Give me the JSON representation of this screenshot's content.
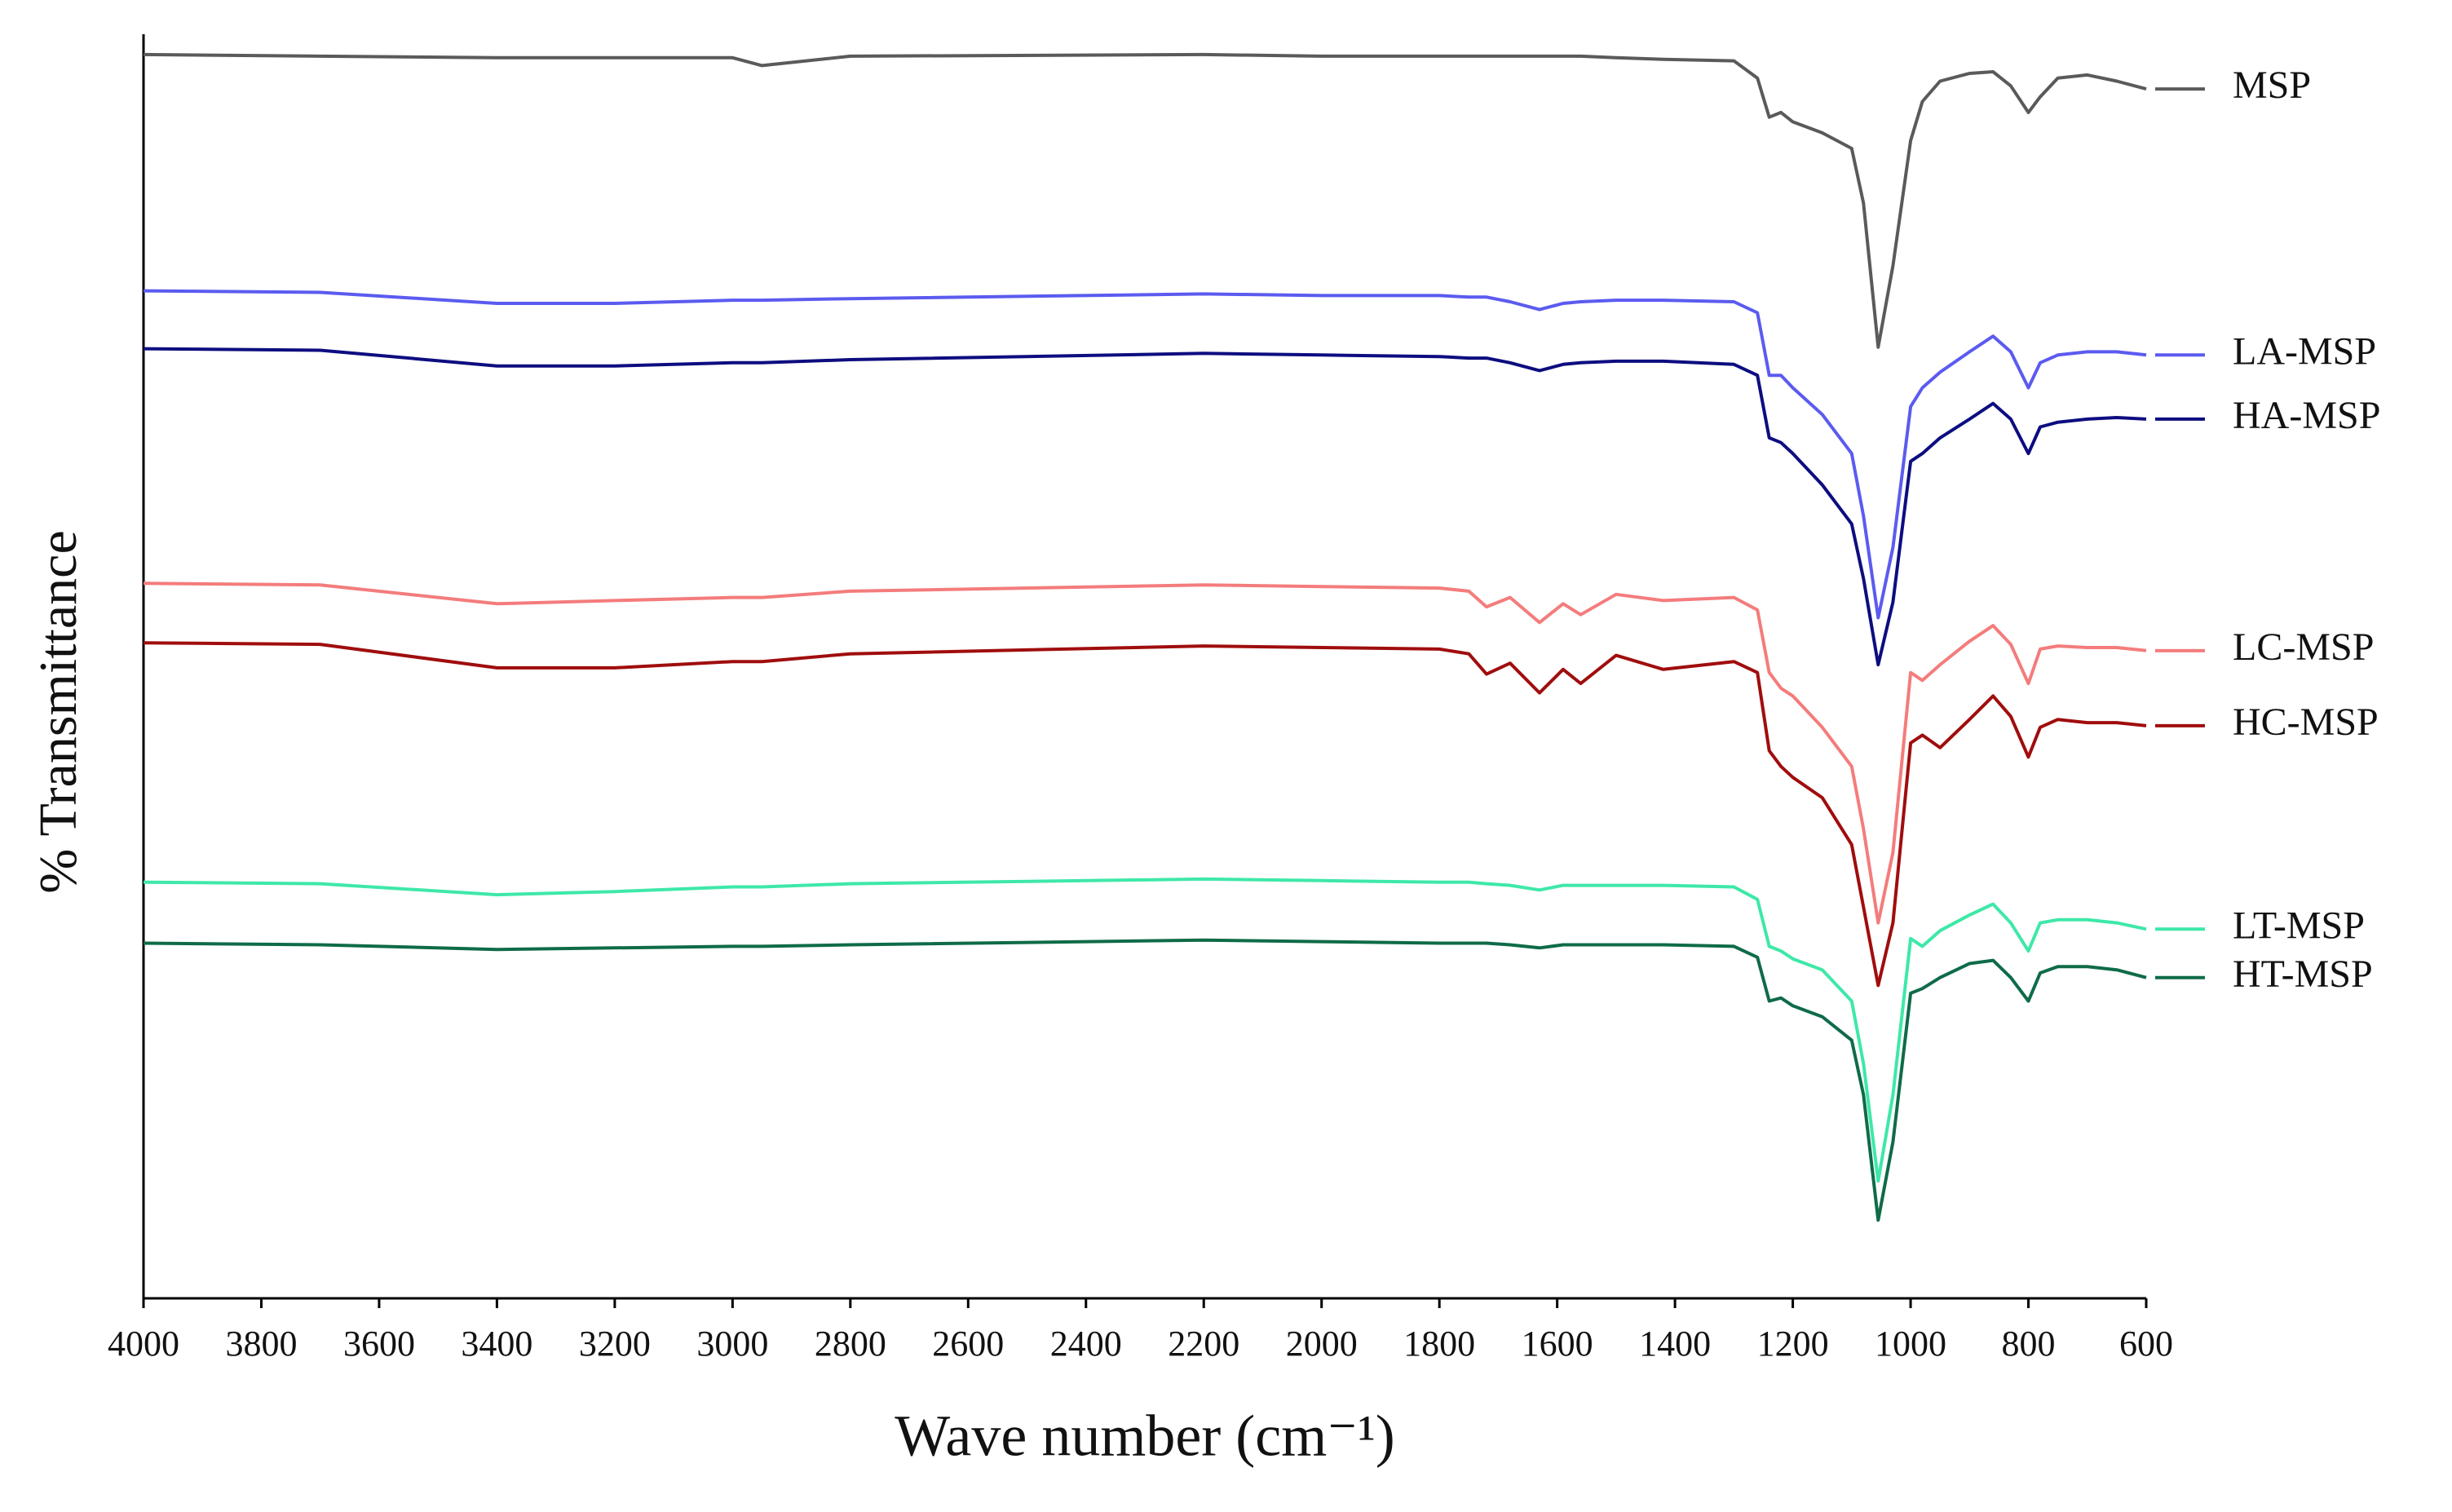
{
  "chart_data": {
    "type": "line",
    "xlabel": "Wave number (cm⁻¹)",
    "ylabel": "% Transmittance",
    "xlim": [
      4000,
      600
    ],
    "xticks": [
      4000,
      3800,
      3600,
      3400,
      3200,
      3000,
      2800,
      2600,
      2400,
      2200,
      2000,
      1800,
      1600,
      1400,
      1200,
      1000,
      800,
      600
    ],
    "ylim": [
      0,
      808
    ],
    "x": [
      4000,
      3700,
      3400,
      3200,
      3000,
      2950,
      2800,
      2200,
      2000,
      1800,
      1750,
      1720,
      1680,
      1630,
      1590,
      1560,
      1500,
      1420,
      1300,
      1260,
      1240,
      1220,
      1200,
      1150,
      1100,
      1080,
      1055,
      1030,
      1000,
      980,
      950,
      900,
      860,
      830,
      800,
      780,
      750,
      700,
      650,
      600
    ],
    "series": [
      {
        "name": "MSP",
        "color": "#5a5a5a",
        "values": [
          795,
          794,
          793,
          793,
          793,
          788,
          794,
          795,
          794,
          794,
          794,
          794,
          794,
          794,
          794,
          794,
          793,
          792,
          791,
          780,
          755,
          758,
          752,
          745,
          735,
          700,
          608,
          660,
          740,
          765,
          778,
          783,
          784,
          775,
          758,
          768,
          780,
          782,
          778,
          773
        ]
      },
      {
        "name": "LA-MSP",
        "color": "#5b5bf0",
        "values": [
          644,
          643,
          636,
          636,
          638,
          638,
          639,
          642,
          641,
          641,
          640,
          640,
          637,
          632,
          636,
          637,
          638,
          638,
          637,
          630,
          590,
          590,
          582,
          565,
          540,
          500,
          435,
          480,
          570,
          582,
          592,
          605,
          615,
          605,
          582,
          598,
          603,
          605,
          605,
          603
        ]
      },
      {
        "name": "HA-MSP",
        "color": "#0d0d80",
        "values": [
          607,
          606,
          596,
          596,
          598,
          598,
          600,
          604,
          603,
          602,
          601,
          601,
          598,
          593,
          597,
          598,
          599,
          599,
          597,
          590,
          550,
          547,
          540,
          520,
          495,
          460,
          405,
          445,
          535,
          540,
          550,
          562,
          572,
          562,
          540,
          557,
          560,
          562,
          563,
          562
        ]
      },
      {
        "name": "LC-MSP",
        "color": "#f47c7c",
        "values": [
          457,
          456,
          444,
          446,
          448,
          448,
          452,
          456,
          455,
          454,
          452,
          442,
          448,
          432,
          444,
          437,
          450,
          446,
          448,
          440,
          400,
          390,
          385,
          365,
          340,
          300,
          240,
          285,
          400,
          395,
          405,
          420,
          430,
          418,
          393,
          415,
          417,
          416,
          416,
          414
        ]
      },
      {
        "name": "HC-MSP",
        "color": "#a00d0d",
        "values": [
          419,
          418,
          403,
          403,
          407,
          407,
          412,
          417,
          416,
          415,
          412,
          399,
          406,
          387,
          402,
          393,
          411,
          402,
          407,
          400,
          350,
          340,
          333,
          320,
          290,
          250,
          200,
          240,
          355,
          360,
          352,
          370,
          385,
          372,
          346,
          365,
          370,
          368,
          368,
          366
        ]
      },
      {
        "name": "LT-MSP",
        "color": "#3ee8a8",
        "values": [
          266,
          265,
          258,
          260,
          263,
          263,
          265,
          268,
          267,
          266,
          266,
          265,
          264,
          261,
          264,
          264,
          264,
          264,
          263,
          255,
          225,
          222,
          217,
          210,
          190,
          150,
          75,
          130,
          230,
          225,
          235,
          245,
          252,
          240,
          222,
          240,
          242,
          242,
          240,
          236
        ]
      },
      {
        "name": "HT-MSP",
        "color": "#0f6b48",
        "values": [
          227,
          226,
          223,
          224,
          225,
          225,
          226,
          229,
          228,
          227,
          227,
          227,
          226,
          224,
          226,
          226,
          226,
          226,
          225,
          218,
          190,
          192,
          187,
          180,
          165,
          130,
          50,
          100,
          195,
          198,
          205,
          214,
          216,
          205,
          190,
          208,
          212,
          212,
          210,
          205
        ]
      }
    ]
  }
}
